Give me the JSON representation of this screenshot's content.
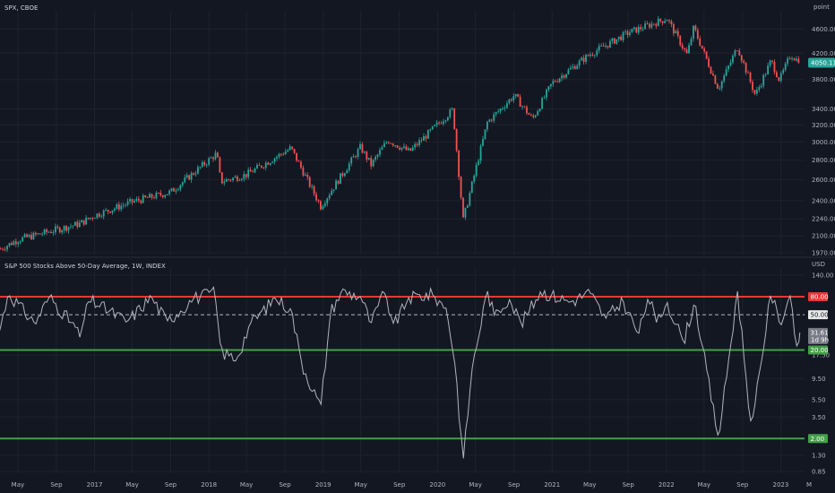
{
  "colors": {
    "background": "#131722",
    "grid": "#1e222d",
    "up": "#26a69a",
    "down": "#ef5350",
    "breadth_line": "#b2b5be",
    "level_80": "#e53935",
    "level_20": "#43a047",
    "level_2": "#43a047",
    "level_50": "#b2b5be",
    "last_price_badge": "#26a69a"
  },
  "price_pane": {
    "title": "SPX, CBOE",
    "unit_label": "point",
    "last_price_label": "4050.11",
    "axis_ticks": [
      "4600.00",
      "4200.00",
      "3800.00",
      "3400.00",
      "3200.00",
      "3000.00",
      "2800.00",
      "2600.00",
      "2400.00",
      "2240.00",
      "2100.00",
      "1970.00"
    ]
  },
  "indicator_pane": {
    "title": "S&P 500 Stocks Above 50-Day Average, 1W, INDEX",
    "unit_label": "USD",
    "axis_ticks": [
      "140.00",
      "80.00",
      "50.00",
      "31.61",
      "20.00",
      "17.50",
      "9.50",
      "5.50",
      "3.50",
      "2.00",
      "1.30",
      "0.85"
    ],
    "badges": {
      "level_80": "80.00",
      "level_50": "50.00",
      "current": "31.61",
      "current_sub": "1d 9h",
      "level_20": "20.00",
      "level_2": "2.00"
    }
  },
  "time_axis": {
    "labels": [
      "May",
      "Sep",
      "2017",
      "May",
      "Sep",
      "2018",
      "May",
      "Sep",
      "2019",
      "May",
      "Sep",
      "2020",
      "May",
      "Sep",
      "2021",
      "May",
      "Sep",
      "2022",
      "May",
      "Sep",
      "2023",
      "M"
    ]
  },
  "chart_data": [
    {
      "type": "candlestick",
      "title": "SPX, CBOE",
      "ylabel": "point",
      "scale": "log",
      "ylim": [
        1970,
        4800
      ],
      "x_range": [
        "2016-03",
        "2023-03"
      ],
      "interval": "1W",
      "anchors": [
        {
          "date": "2016-03-07",
          "close": 2000
        },
        {
          "date": "2016-05-01",
          "close": 2070
        },
        {
          "date": "2016-09-01",
          "close": 2150
        },
        {
          "date": "2016-11-15",
          "close": 2200
        },
        {
          "date": "2017-01-01",
          "close": 2270
        },
        {
          "date": "2017-05-01",
          "close": 2390
        },
        {
          "date": "2017-09-01",
          "close": 2480
        },
        {
          "date": "2018-01-26",
          "close": 2870
        },
        {
          "date": "2018-02-08",
          "close": 2580
        },
        {
          "date": "2018-05-01",
          "close": 2650
        },
        {
          "date": "2018-09-20",
          "close": 2930
        },
        {
          "date": "2018-12-24",
          "close": 2350
        },
        {
          "date": "2019-04-30",
          "close": 2940
        },
        {
          "date": "2019-06-03",
          "close": 2750
        },
        {
          "date": "2019-07-26",
          "close": 3020
        },
        {
          "date": "2019-10-03",
          "close": 2890
        },
        {
          "date": "2020-02-19",
          "close": 3390
        },
        {
          "date": "2020-03-23",
          "close": 2230
        },
        {
          "date": "2020-06-08",
          "close": 3230
        },
        {
          "date": "2020-09-02",
          "close": 3580
        },
        {
          "date": "2020-10-30",
          "close": 3270
        },
        {
          "date": "2021-01-01",
          "close": 3750
        },
        {
          "date": "2021-05-01",
          "close": 4180
        },
        {
          "date": "2021-09-02",
          "close": 4540
        },
        {
          "date": "2022-01-03",
          "close": 4790
        },
        {
          "date": "2022-03-08",
          "close": 4170
        },
        {
          "date": "2022-03-29",
          "close": 4630
        },
        {
          "date": "2022-06-16",
          "close": 3670
        },
        {
          "date": "2022-08-16",
          "close": 4300
        },
        {
          "date": "2022-10-12",
          "close": 3580
        },
        {
          "date": "2022-12-01",
          "close": 4080
        },
        {
          "date": "2022-12-28",
          "close": 3790
        },
        {
          "date": "2023-02-02",
          "close": 4180
        },
        {
          "date": "2023-03-03",
          "close": 4050
        }
      ]
    },
    {
      "type": "line",
      "title": "S&P 500 Stocks Above 50-Day Average, 1W, INDEX",
      "ylabel": "USD",
      "scale": "log",
      "ylim": [
        0.85,
        140
      ],
      "horizontal_levels": [
        80,
        50,
        20,
        2
      ],
      "anchors": [
        {
          "date": "2016-03-01",
          "value": 30
        },
        {
          "date": "2016-04-01",
          "value": 88
        },
        {
          "date": "2016-06-24",
          "value": 40
        },
        {
          "date": "2016-08-10",
          "value": 80
        },
        {
          "date": "2016-11-04",
          "value": 35
        },
        {
          "date": "2016-11-15",
          "value": 28
        },
        {
          "date": "2016-12-15",
          "value": 75
        },
        {
          "date": "2017-04-15",
          "value": 42
        },
        {
          "date": "2017-07-01",
          "value": 80
        },
        {
          "date": "2017-08-20",
          "value": 42
        },
        {
          "date": "2017-11-15",
          "value": 78
        },
        {
          "date": "2018-01-20",
          "value": 90
        },
        {
          "date": "2018-02-09",
          "value": 19
        },
        {
          "date": "2018-04-01",
          "value": 16
        },
        {
          "date": "2018-05-10",
          "value": 38
        },
        {
          "date": "2018-08-01",
          "value": 78
        },
        {
          "date": "2018-09-20",
          "value": 58
        },
        {
          "date": "2018-10-25",
          "value": 14
        },
        {
          "date": "2018-12-24",
          "value": 4.5
        },
        {
          "date": "2019-01-25",
          "value": 55
        },
        {
          "date": "2019-03-01",
          "value": 92
        },
        {
          "date": "2019-05-01",
          "value": 80
        },
        {
          "date": "2019-06-03",
          "value": 40
        },
        {
          "date": "2019-07-15",
          "value": 90
        },
        {
          "date": "2019-08-15",
          "value": 38
        },
        {
          "date": "2019-10-01",
          "value": 78
        },
        {
          "date": "2019-12-15",
          "value": 85
        },
        {
          "date": "2020-01-31",
          "value": 58
        },
        {
          "date": "2020-02-28",
          "value": 12
        },
        {
          "date": "2020-03-23",
          "value": 1.1
        },
        {
          "date": "2020-04-20",
          "value": 12
        },
        {
          "date": "2020-06-08",
          "value": 95
        },
        {
          "date": "2020-07-01",
          "value": 48
        },
        {
          "date": "2020-08-15",
          "value": 78
        },
        {
          "date": "2020-09-25",
          "value": 40
        },
        {
          "date": "2020-11-25",
          "value": 92
        },
        {
          "date": "2021-03-01",
          "value": 70
        },
        {
          "date": "2021-05-01",
          "value": 90
        },
        {
          "date": "2021-06-20",
          "value": 45
        },
        {
          "date": "2021-08-15",
          "value": 72
        },
        {
          "date": "2021-10-04",
          "value": 30
        },
        {
          "date": "2021-11-05",
          "value": 82
        },
        {
          "date": "2021-12-01",
          "value": 40
        },
        {
          "date": "2022-01-03",
          "value": 70
        },
        {
          "date": "2022-02-24",
          "value": 25
        },
        {
          "date": "2022-04-01",
          "value": 70
        },
        {
          "date": "2022-06-16",
          "value": 2
        },
        {
          "date": "2022-08-16",
          "value": 92
        },
        {
          "date": "2022-09-30",
          "value": 2.5
        },
        {
          "date": "2022-12-01",
          "value": 92
        },
        {
          "date": "2022-12-28",
          "value": 40
        },
        {
          "date": "2023-02-02",
          "value": 85
        },
        {
          "date": "2023-02-24",
          "value": 18
        },
        {
          "date": "2023-03-03",
          "value": 31.61
        }
      ]
    }
  ]
}
